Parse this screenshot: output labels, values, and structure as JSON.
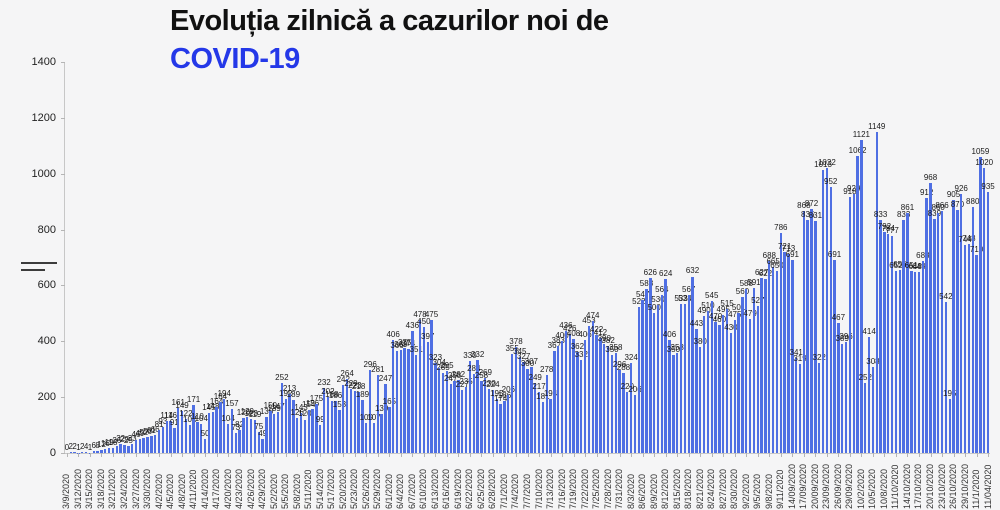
{
  "title": {
    "line1": "Evoluția zilnică a cazurilor noi de",
    "line2": "COVID-19"
  },
  "colors": {
    "bar": "#4f6fe3",
    "title_accent": "#2438e8",
    "axis": "#c7c7c7",
    "value_label": "#1a1a1a"
  },
  "chart_data": {
    "type": "bar",
    "title": "Evoluția zilnică a cazurilor noi de COVID-19",
    "xlabel": "",
    "ylabel": "",
    "ylim": [
      0,
      1400
    ],
    "y_ticks": [
      0,
      200,
      400,
      600,
      800,
      1000,
      1200,
      1400
    ],
    "grid": false,
    "legend_position": "none",
    "bar_value_labels_shown": true,
    "x_tick_every": 3,
    "x_tick_labels": [
      "3/9/2020",
      "3/12/2020",
      "3/15/2020",
      "3/18/2020",
      "3/21/2020",
      "3/24/2020",
      "3/27/2020",
      "3/30/2020",
      "4/2/2020",
      "4/5/2020",
      "4/8/2020",
      "4/11/2020",
      "4/14/2020",
      "4/17/2020",
      "4/20/2020",
      "4/23/2020",
      "4/26/2020",
      "4/29/2020",
      "5/2/2020",
      "5/5/2020",
      "5/8/2020",
      "5/11/2020",
      "5/14/2020",
      "5/17/2020",
      "5/20/2020",
      "5/23/2020",
      "5/26/2020",
      "5/29/2020",
      "6/1/2020",
      "6/4/2020",
      "6/7/2020",
      "6/10/2020",
      "6/13/2020",
      "6/16/2020",
      "6/19/2020",
      "6/22/2020",
      "6/25/2020",
      "6/28/2020",
      "7/1/2020",
      "7/4/2020",
      "7/7/2020",
      "7/10/2020",
      "7/13/2020",
      "7/16/2020",
      "7/19/2020",
      "7/22/2020",
      "7/25/2020",
      "7/28/2020",
      "7/31/2020",
      "8/3/2020",
      "8/6/2020",
      "8/9/2020",
      "8/12/2020",
      "8/15/2020",
      "8/18/2020",
      "8/21/2020",
      "8/24/2020",
      "8/27/2020",
      "8/30/2020",
      "9/2/2020",
      "9/5/2020",
      "9/8/2020",
      "9/11/2020",
      "14/09/2020",
      "17/09/2020",
      "20/09/2020",
      "23/09/2020",
      "26/09/2020",
      "29/09/2020",
      "10/2/2020",
      "10/5/2020",
      "10/8/2020",
      "11/10/2020",
      "14/10/2020",
      "17/10/2020",
      "20/10/2020",
      "23/10/2020",
      "26/10/2020",
      "29/10/2020",
      "11/1/2020",
      "11/04/2020"
    ],
    "values": [
      0,
      2,
      2,
      1,
      2,
      4,
      1,
      6,
      8,
      12,
      16,
      19,
      18,
      26,
      32,
      29,
      25,
      33,
      46,
      49,
      52,
      58,
      61,
      66,
      81,
      93,
      114,
      116,
      91,
      161,
      149,
      122,
      102,
      171,
      110,
      104,
      50,
      145,
      148,
      164,
      184,
      194,
      104,
      157,
      73,
      82,
      126,
      129,
      123,
      119,
      75,
      49,
      130,
      150,
      139,
      147,
      252,
      192,
      213,
      189,
      126,
      143,
      120,
      154,
      156,
      175,
      99,
      232,
      202,
      188,
      186,
      153,
      242,
      264,
      229,
      223,
      218,
      189,
      109,
      296,
      107,
      281,
      139,
      247,
      165,
      406,
      366,
      369,
      375,
      374,
      436,
      351,
      478,
      450,
      397,
      475,
      323,
      304,
      285,
      295,
      247,
      258,
      262,
      227,
      235,
      330,
      284,
      332,
      258,
      269,
      230,
      224,
      195,
      174,
      186,
      206,
      355,
      378,
      345,
      327,
      300,
      307,
      249,
      217,
      181,
      278,
      194,
      367,
      383,
      400,
      436,
      426,
      408,
      362,
      332,
      406,
      453,
      474,
      422,
      412,
      390,
      382,
      350,
      358,
      296,
      288,
      220,
      324,
      206,
      522,
      547,
      588,
      626,
      500,
      530,
      564,
      624,
      406,
      350,
      358,
      532,
      534,
      567,
      632,
      443,
      380,
      490,
      510,
      545,
      470,
      460,
      495,
      515,
      430,
      475,
      501,
      560,
      588,
      479,
      591,
      527,
      627,
      622,
      688,
      665,
      650,
      786,
      721,
      713,
      691,
      341,
      319,
      868,
      835,
      872,
      831,
      322,
      1013,
      1022,
      952,
      691,
      467,
      389,
      396,
      918,
      929,
      1062,
      1121,
      252,
      414,
      308,
      1149,
      833,
      792,
      784,
      777,
      652,
      656,
      833,
      861,
      651,
      648,
      649,
      688,
      912,
      968,
      839,
      860,
      866,
      542,
      195,
      905,
      870,
      926,
      744,
      748,
      880,
      710,
      1059,
      1020,
      935
    ]
  }
}
